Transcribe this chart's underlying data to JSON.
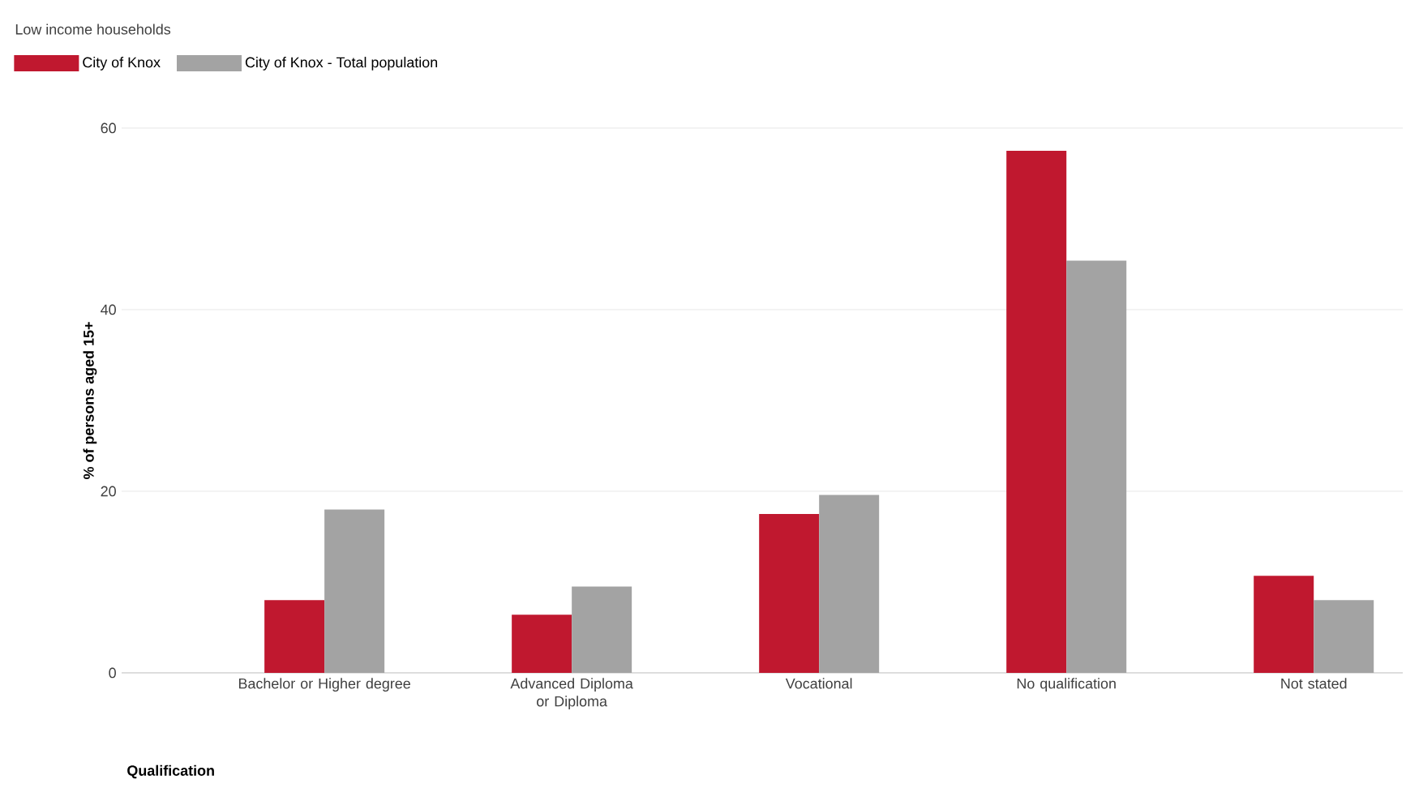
{
  "chart_data": {
    "type": "bar",
    "title": "Low income households",
    "xlabel": "Qualification",
    "ylabel": "% of persons aged 15+",
    "categories": [
      "Bachelor or Higher degree",
      "Advanced Diploma or Diploma",
      "Vocational",
      "No qualification",
      "Not stated"
    ],
    "series": [
      {
        "name": "City of Knox",
        "color": "#c0182f",
        "values": [
          8.0,
          6.4,
          17.5,
          57.5,
          10.7
        ]
      },
      {
        "name": "City of Knox - Total population",
        "color": "#a3a3a3",
        "values": [
          18.0,
          9.5,
          19.6,
          45.4,
          8.0
        ]
      }
    ],
    "ylim": [
      0,
      60
    ],
    "yticks": [
      0,
      20,
      40,
      60
    ],
    "grid": "y",
    "legend": "top left"
  }
}
